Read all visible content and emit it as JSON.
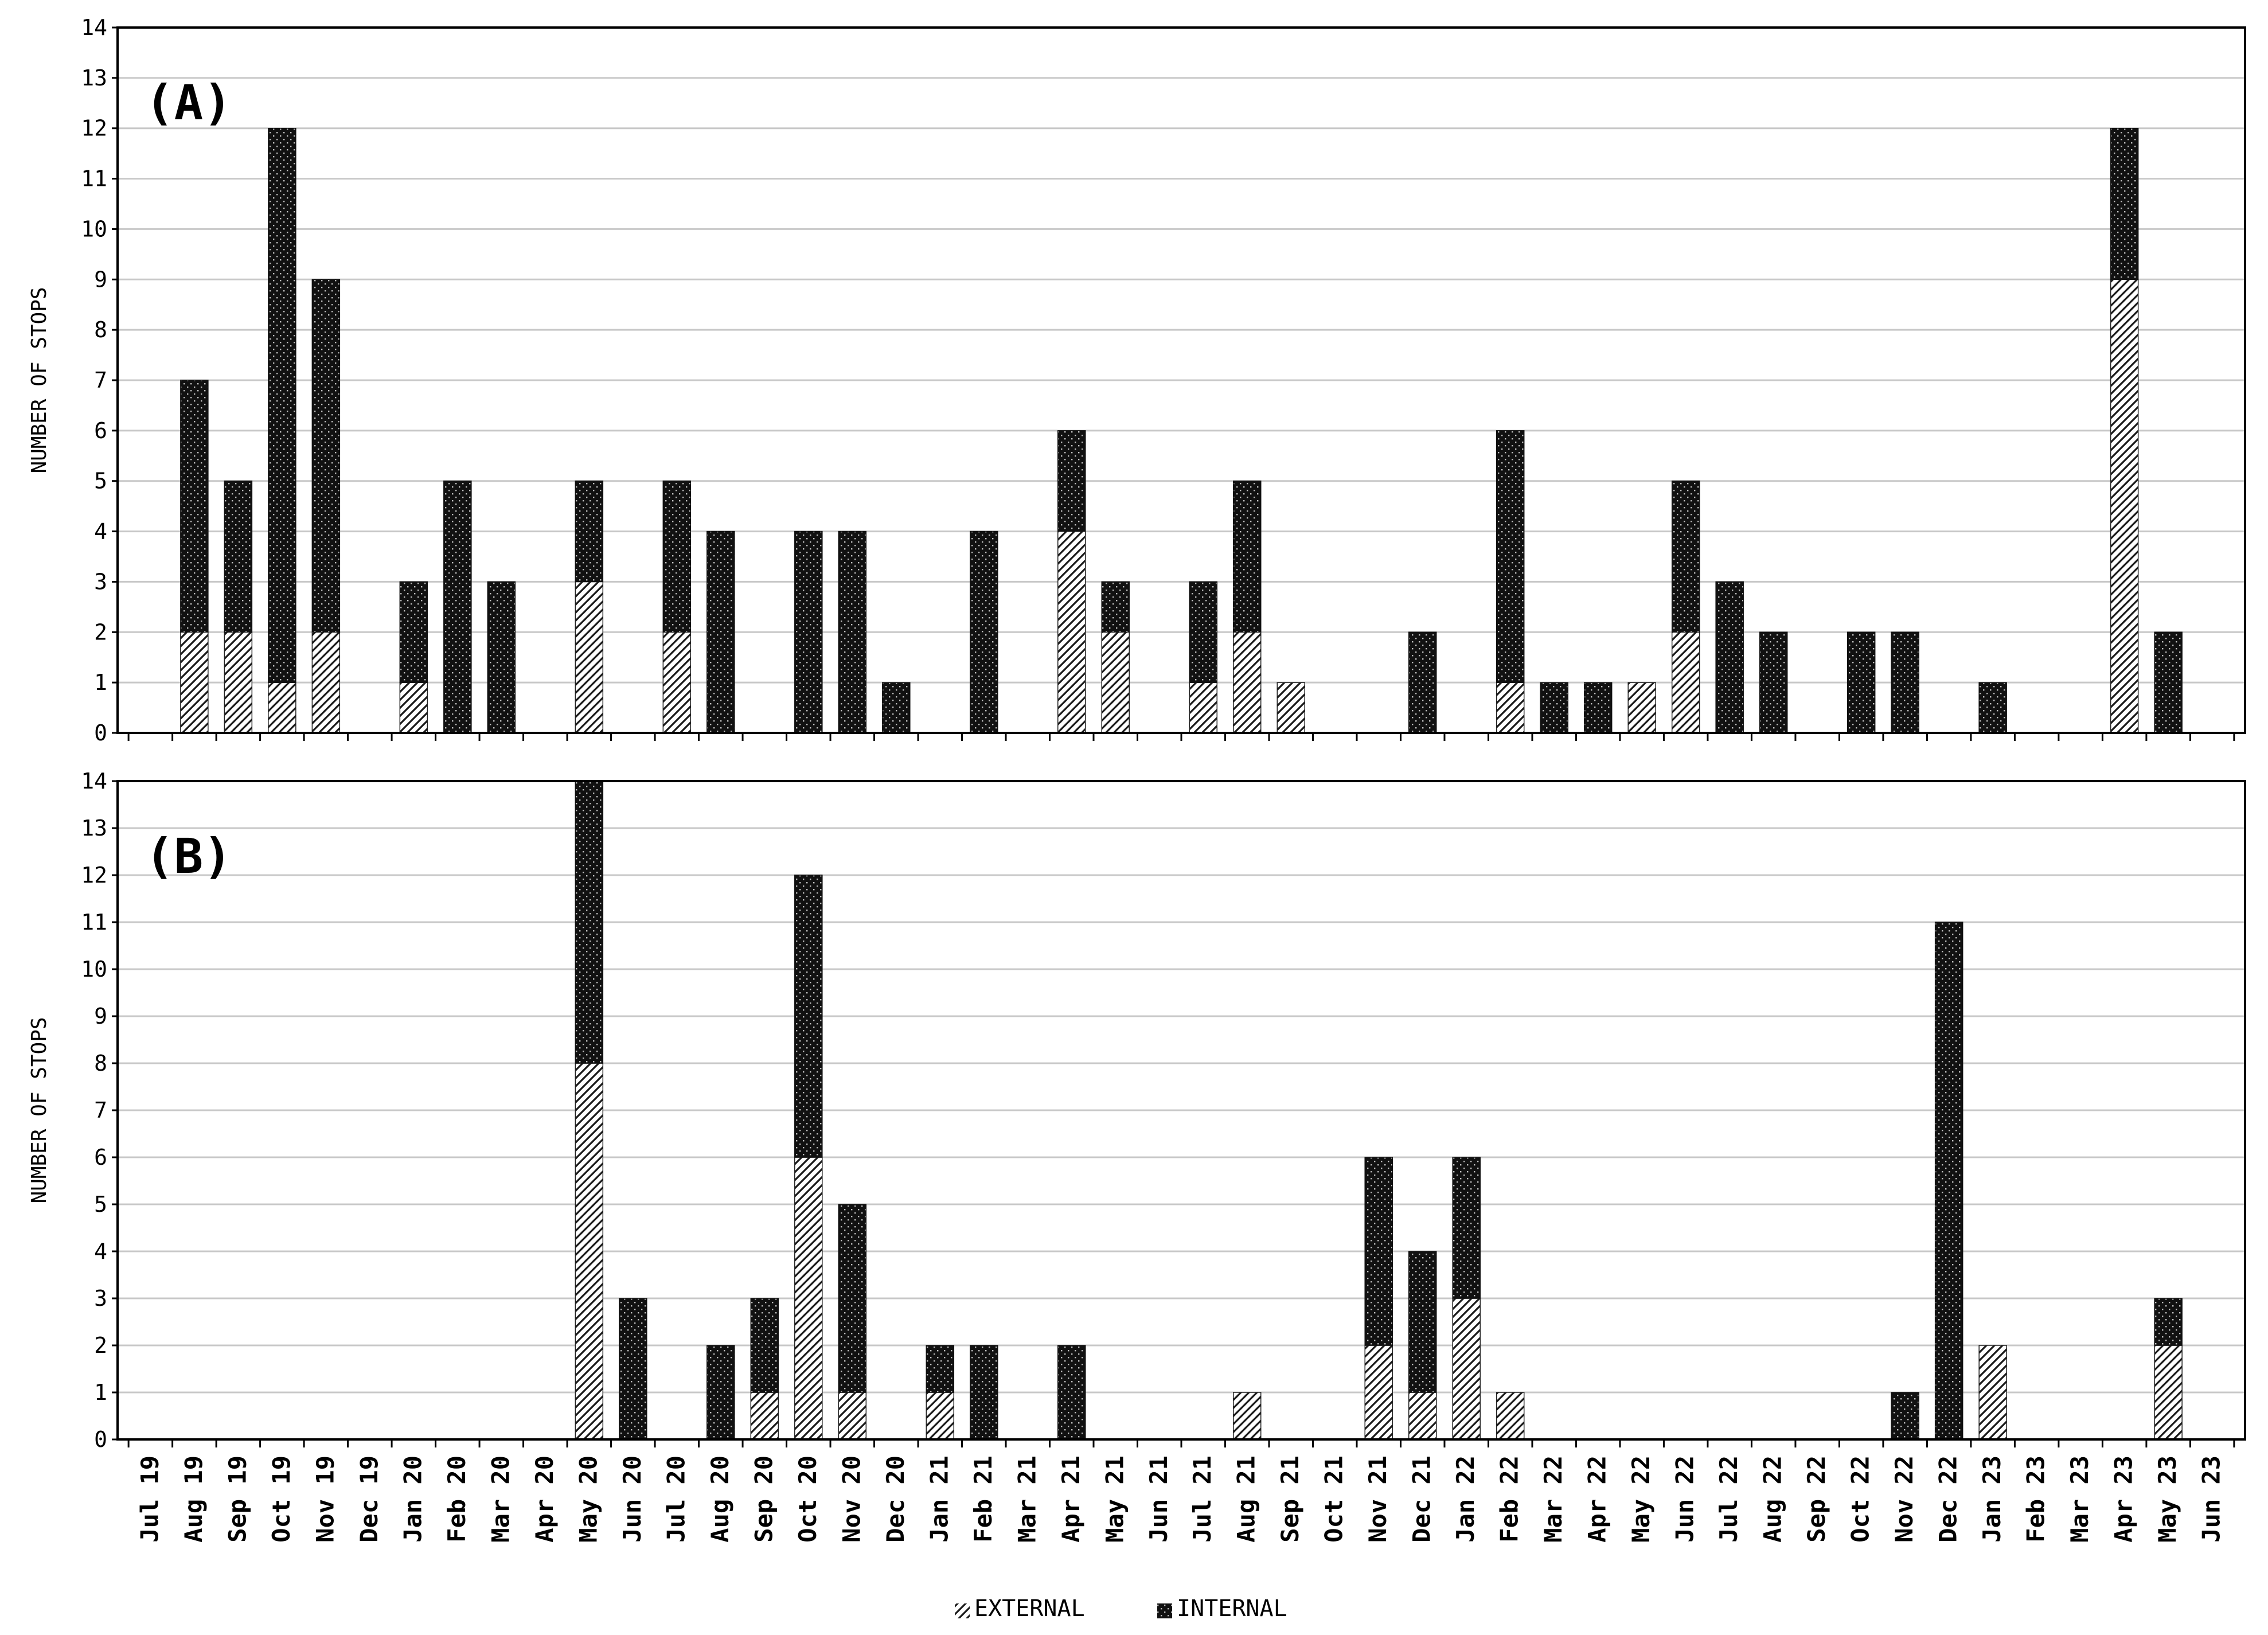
{
  "colors": {
    "external_fill": "#ffffff",
    "external_stripe": "#1a1a1a",
    "internal_fill": "#111111",
    "internal_dot": "#bdbdbd",
    "gridline": "#c8c8c8",
    "frame": "#000000",
    "background": "#ffffff"
  },
  "legend": {
    "external_label": "EXTERNAL",
    "internal_label": "INTERNAL",
    "placement": "bottom-center"
  },
  "chart_data": [
    {
      "type": "bar",
      "stacked": true,
      "panel_label": "(A)",
      "ylabel": "NUMBER OF STOPS",
      "ylim": [
        0,
        14
      ],
      "y_ticks": [
        0,
        1,
        2,
        3,
        4,
        5,
        6,
        7,
        8,
        9,
        10,
        11,
        12,
        13,
        14
      ],
      "grid": true,
      "categories": [
        "Jul 19",
        "Aug 19",
        "Sep 19",
        "Oct 19",
        "Nov 19",
        "Dec 19",
        "Jan 20",
        "Feb 20",
        "Mar 20",
        "Apr 20",
        "May 20",
        "Jun 20",
        "Jul 20",
        "Aug 20",
        "Sep 20",
        "Oct 20",
        "Nov 20",
        "Dec 20",
        "Jan 21",
        "Feb 21",
        "Mar 21",
        "Apr 21",
        "May 21",
        "Jun 21",
        "Jul 21",
        "Aug 21",
        "Sep 21",
        "Oct 21",
        "Nov 21",
        "Dec 21",
        "Jan 22",
        "Feb 22",
        "Mar 22",
        "Apr 22",
        "May 22",
        "Jun 22",
        "Jul 22",
        "Aug 22",
        "Sep 22",
        "Oct 22",
        "Nov 22",
        "Dec 22",
        "Jan 23",
        "Feb 23",
        "Mar 23",
        "Apr 23",
        "May 23",
        "Jun 23"
      ],
      "series": [
        {
          "name": "EXTERNAL",
          "values": [
            0,
            2,
            2,
            1,
            2,
            0,
            1,
            0,
            0,
            0,
            3,
            0,
            2,
            0,
            0,
            0,
            0,
            0,
            0,
            0,
            0,
            4,
            2,
            0,
            1,
            2,
            1,
            0,
            0,
            0,
            0,
            1,
            0,
            0,
            1,
            2,
            0,
            0,
            0,
            0,
            0,
            0,
            0,
            0,
            0,
            9,
            0,
            0
          ]
        },
        {
          "name": "INTERNAL",
          "values": [
            0,
            5,
            3,
            11,
            7,
            0,
            2,
            5,
            3,
            0,
            2,
            0,
            3,
            4,
            0,
            4,
            4,
            1,
            0,
            4,
            0,
            2,
            1,
            0,
            2,
            3,
            0,
            0,
            0,
            2,
            0,
            5,
            1,
            1,
            0,
            3,
            3,
            2,
            0,
            2,
            2,
            0,
            1,
            0,
            0,
            3,
            2,
            0
          ]
        }
      ]
    },
    {
      "type": "bar",
      "stacked": true,
      "panel_label": "(B)",
      "ylabel": "NUMBER OF STOPS",
      "ylim": [
        0,
        14
      ],
      "y_ticks": [
        0,
        1,
        2,
        3,
        4,
        5,
        6,
        7,
        8,
        9,
        10,
        11,
        12,
        13,
        14
      ],
      "grid": true,
      "categories": [
        "Jul 19",
        "Aug 19",
        "Sep 19",
        "Oct 19",
        "Nov 19",
        "Dec 19",
        "Jan 20",
        "Feb 20",
        "Mar 20",
        "Apr 20",
        "May 20",
        "Jun 20",
        "Jul 20",
        "Aug 20",
        "Sep 20",
        "Oct 20",
        "Nov 20",
        "Dec 20",
        "Jan 21",
        "Feb 21",
        "Mar 21",
        "Apr 21",
        "May 21",
        "Jun 21",
        "Jul 21",
        "Aug 21",
        "Sep 21",
        "Oct 21",
        "Nov 21",
        "Dec 21",
        "Jan 22",
        "Feb 22",
        "Mar 22",
        "Apr 22",
        "May 22",
        "Jun 22",
        "Jul 22",
        "Aug 22",
        "Sep 22",
        "Oct 22",
        "Nov 22",
        "Dec 22",
        "Jan 23",
        "Feb 23",
        "Mar 23",
        "Apr 23",
        "May 23",
        "Jun 23"
      ],
      "series": [
        {
          "name": "EXTERNAL",
          "values": [
            0,
            0,
            0,
            0,
            0,
            0,
            0,
            0,
            0,
            0,
            8,
            0,
            0,
            0,
            1,
            6,
            1,
            0,
            1,
            0,
            0,
            0,
            0,
            0,
            0,
            1,
            0,
            0,
            2,
            1,
            3,
            1,
            0,
            0,
            0,
            0,
            0,
            0,
            0,
            0,
            0,
            0,
            2,
            0,
            0,
            0,
            2,
            0
          ]
        },
        {
          "name": "INTERNAL",
          "values": [
            0,
            0,
            0,
            0,
            0,
            0,
            0,
            0,
            0,
            0,
            6,
            3,
            0,
            2,
            2,
            6,
            4,
            0,
            1,
            2,
            0,
            2,
            0,
            0,
            0,
            0,
            0,
            0,
            4,
            3,
            3,
            0,
            0,
            0,
            0,
            0,
            0,
            0,
            0,
            0,
            1,
            11,
            0,
            0,
            0,
            0,
            1,
            0
          ]
        }
      ]
    }
  ]
}
